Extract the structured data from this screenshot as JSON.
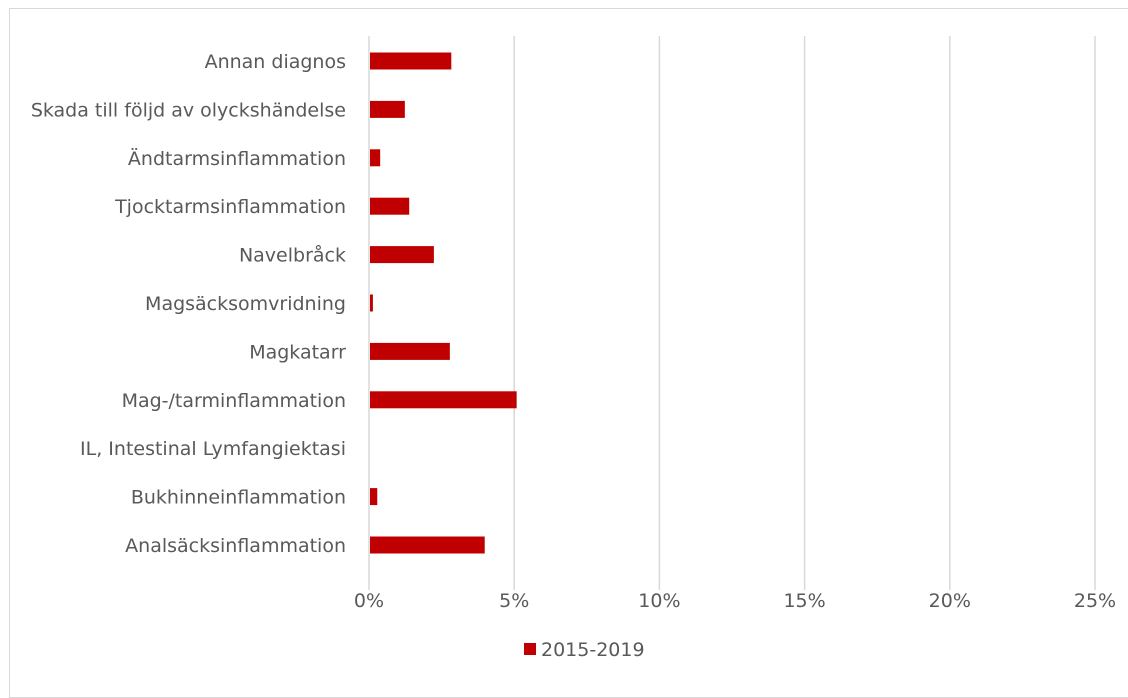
{
  "chart_data": {
    "type": "bar",
    "orientation": "horizontal",
    "categories": [
      "Annan diagnos",
      "Skada till följd av olyckshändelse",
      "Ändtarmsinflammation",
      "Tjocktarmsinflammation",
      "Navelbråck",
      "Magsäcksomvridning",
      "Magkatarr",
      "Mag-/tarminflammation",
      "IL, Intestinal Lymfangiektasi",
      "Bukhinneinflammation",
      "Analsäcksinflammation"
    ],
    "series": [
      {
        "name": "2015-2019",
        "color": "#c00000",
        "values": [
          2.8,
          1.2,
          0.35,
          1.35,
          2.2,
          0.1,
          2.75,
          5.05,
          0.0,
          0.25,
          3.95
        ]
      }
    ],
    "xlim": [
      0,
      25
    ],
    "xticks": [
      0,
      5,
      10,
      15,
      20,
      25
    ],
    "tick_labels": [
      "0%",
      "5%",
      "10%",
      "15%",
      "20%",
      "25%"
    ],
    "grid": true,
    "gridline_color": "#d9d9d9",
    "legend_position": "bottom",
    "title": "",
    "xlabel": "",
    "ylabel": ""
  }
}
